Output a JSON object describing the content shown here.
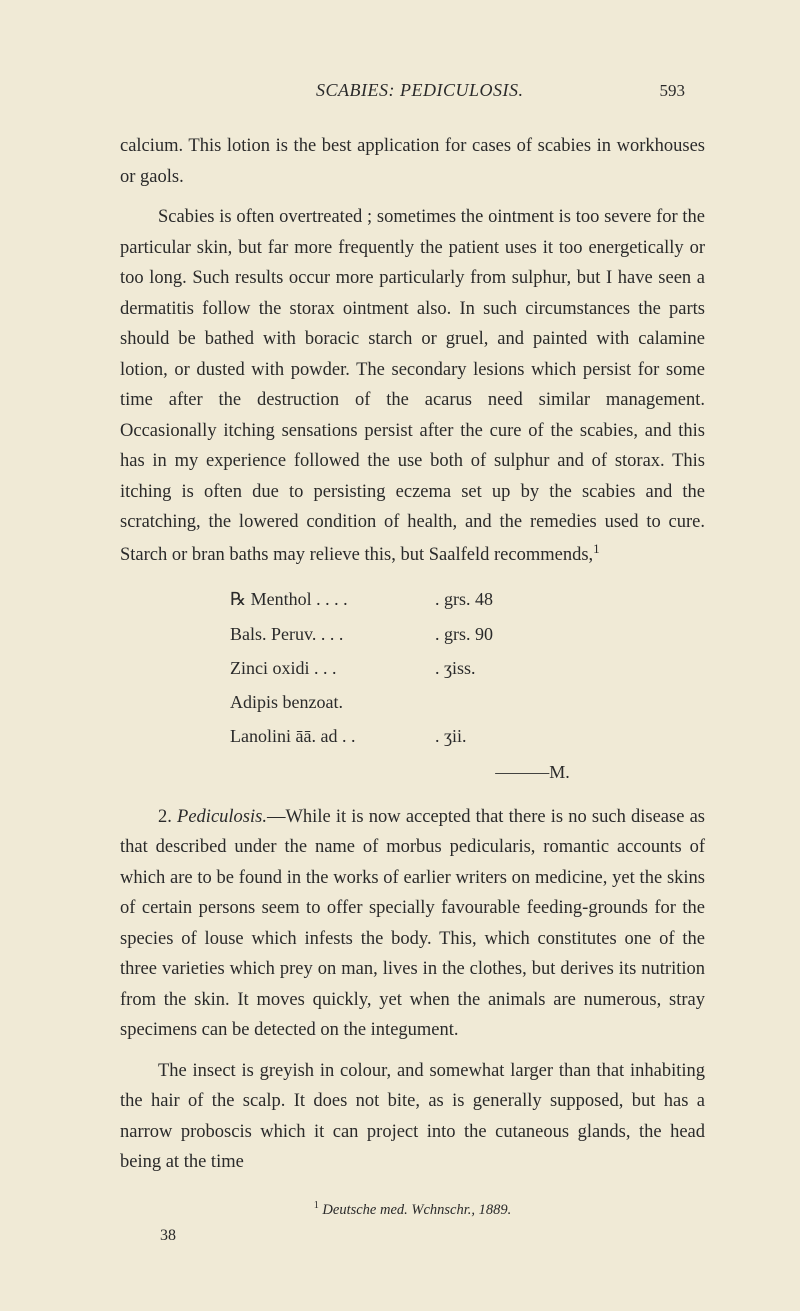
{
  "page": {
    "runningTitle": "SCABIES: PEDICULOSIS.",
    "pageNumber": "593",
    "bottomNumber": "38",
    "footnote": {
      "marker": "1",
      "text": "Deutsche med. Wchnschr., 1889."
    }
  },
  "body": {
    "para1a": "calcium. This lotion is the best application for cases of scabies in workhouses or gaols.",
    "para1b": "Scabies is often overtreated ; sometimes the ointment is too severe for the particular skin, but far more frequently the patient uses it too energetically or too long. Such results occur more particularly from sulphur, but I have seen a dermatitis follow the storax ointment also. In such circumstances the parts should be bathed with boracic starch or gruel, and painted with calamine lotion, or dusted with powder. The secondary lesions which persist for some time after the destruction of the acarus need similar management. Occasionally itching sensations persist after the cure of the scabies, and this has in my experience followed the use both of sulphur and of storax. This itching is often due to persisting eczema set up by the scabies and the scratching, the lowered condition of health, and the remedies used to cure. Starch or bran baths may relieve this, but Saalfeld recommends,",
    "para1bSup": "1",
    "prescription": {
      "lines": [
        {
          "item": "℞ Menthol .    .    .    .",
          "value": ".   grs. 48"
        },
        {
          "item": "    Bals. Peruv.    .    .    .",
          "value": ".   grs. 90"
        },
        {
          "item": "    Zinci oxidi    .    .    .",
          "value": ".   ʒiss."
        },
        {
          "item": "    Adipis benzoat.",
          "value": ""
        },
        {
          "item": "    Lanolini āā. ad    .    .",
          "value": ".   ʒii."
        }
      ],
      "mLine": "———M."
    },
    "para2Num": "2. ",
    "para2Title": "Pediculosis.",
    "para2": "—While it is now accepted that there is no such disease as that described under the name of morbus pedicularis, romantic accounts of which are to be found in the works of earlier writers on medicine, yet the skins of certain persons seem to offer specially favourable feeding-grounds for the species of louse which infests the body. This, which constitutes one of the three varieties which prey on man, lives in the clothes, but derives its nutrition from the skin. It moves quickly, yet when the animals are numerous, stray specimens can be detected on the integument.",
    "para3": "The insect is greyish in colour, and somewhat larger than that inhabiting the hair of the scalp. It does not bite, as is generally supposed, but has a narrow proboscis which it can project into the cutaneous glands, the head being at the time"
  },
  "style": {
    "backgroundColor": "#f0ead6",
    "textColor": "#2a2a2a",
    "bodyFontSize": 18.5,
    "lineHeight": 1.65,
    "footnoteFontSize": 14.5,
    "fontFamily": "Georgia, Times New Roman, serif"
  }
}
